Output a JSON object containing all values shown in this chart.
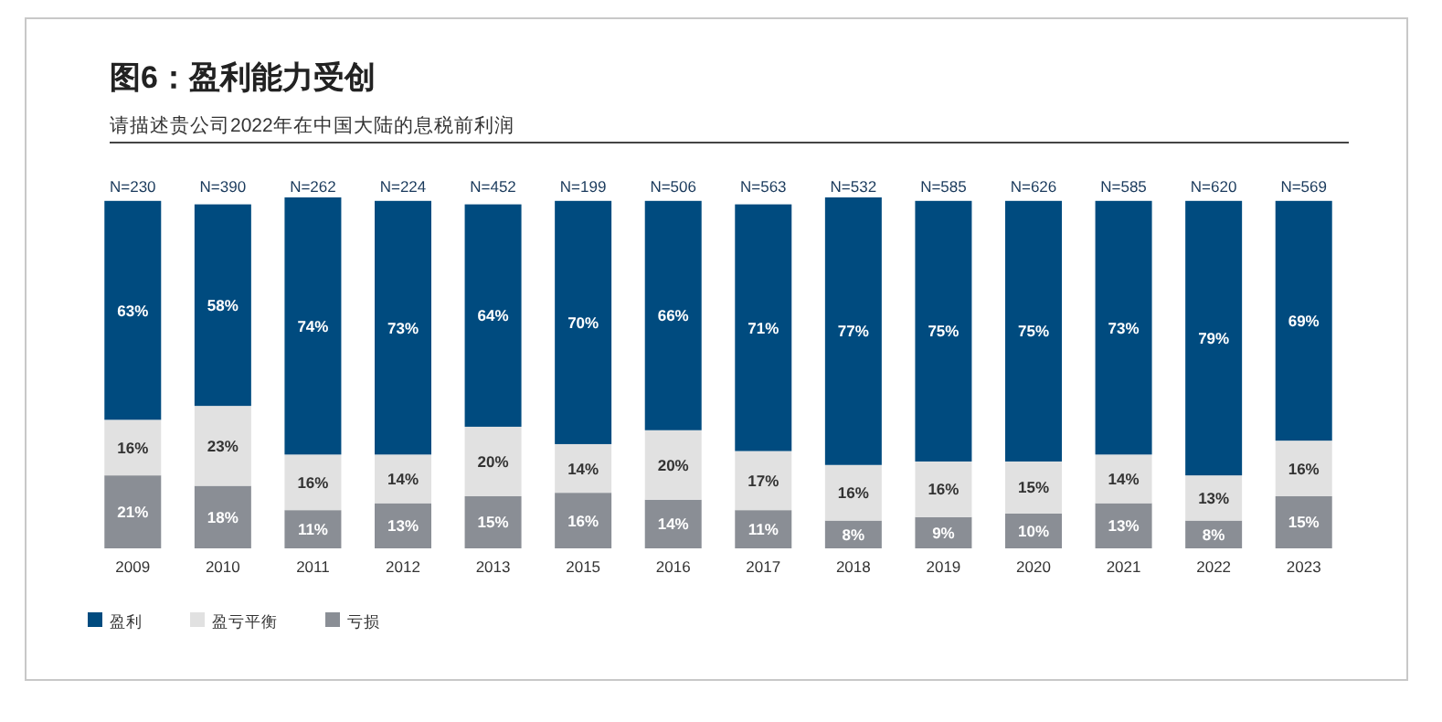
{
  "chart_data": {
    "type": "bar",
    "title": "图6：盈利能力受创",
    "subtitle": "请描述贵公司2022年在中国大陆的息税前利润",
    "categories": [
      "2009",
      "2010",
      "2011",
      "2012",
      "2013",
      "2015",
      "2016",
      "2017",
      "2018",
      "2019",
      "2020",
      "2021",
      "2022",
      "2023"
    ],
    "stacked": true,
    "legend": "bottom left",
    "series": [
      {
        "name": "亏损",
        "color": "#8a8e95",
        "values": [
          21,
          18,
          11,
          13,
          15,
          16,
          14,
          11,
          8,
          9,
          10,
          13,
          8,
          15
        ],
        "value_labels": [
          "21%",
          "18%",
          "11%",
          "13%",
          "15%",
          "16%",
          "14%",
          "11%",
          "8%",
          "9%",
          "10%",
          "13%",
          "8%",
          "15%"
        ]
      },
      {
        "name": "盈亏平衡",
        "color": "#e1e1e1",
        "values": [
          16,
          23,
          16,
          14,
          20,
          14,
          20,
          17,
          16,
          16,
          15,
          14,
          13,
          16
        ],
        "value_labels": [
          "16%",
          "23%",
          "16%",
          "14%",
          "20%",
          "14%",
          "20%",
          "17%",
          "16%",
          "16%",
          "15%",
          "14%",
          "13%",
          "16%"
        ]
      },
      {
        "name": "盈利",
        "color": "#004b7f",
        "values": [
          63,
          58,
          74,
          73,
          64,
          70,
          66,
          71,
          77,
          75,
          75,
          73,
          79,
          69
        ],
        "value_labels": [
          "63%",
          "58%",
          "74%",
          "73%",
          "64%",
          "70%",
          "66%",
          "71%",
          "77%",
          "75%",
          "75%",
          "73%",
          "79%",
          "69%"
        ]
      }
    ],
    "annotations": [
      {
        "text": "N=230",
        "x": "2009",
        "y": 100
      },
      {
        "text": "N=390",
        "x": "2010",
        "y": 100
      },
      {
        "text": "N=262",
        "x": "2011",
        "y": 100
      },
      {
        "text": "N=224",
        "x": "2012",
        "y": 100
      },
      {
        "text": "N=452",
        "x": "2013",
        "y": 100
      },
      {
        "text": "N=199",
        "x": "2015",
        "y": 100
      },
      {
        "text": "N=506",
        "x": "2016",
        "y": 100
      },
      {
        "text": "N=563",
        "x": "2017",
        "y": 100
      },
      {
        "text": "N=532",
        "x": "2018",
        "y": 100
      },
      {
        "text": "N=585",
        "x": "2019",
        "y": 100
      },
      {
        "text": "N=626",
        "x": "2020",
        "y": 100
      },
      {
        "text": "N=585",
        "x": "2021",
        "y": 100
      },
      {
        "text": "N=620",
        "x": "2022",
        "y": 100
      },
      {
        "text": "N=569",
        "x": "2023",
        "y": 100
      }
    ]
  }
}
